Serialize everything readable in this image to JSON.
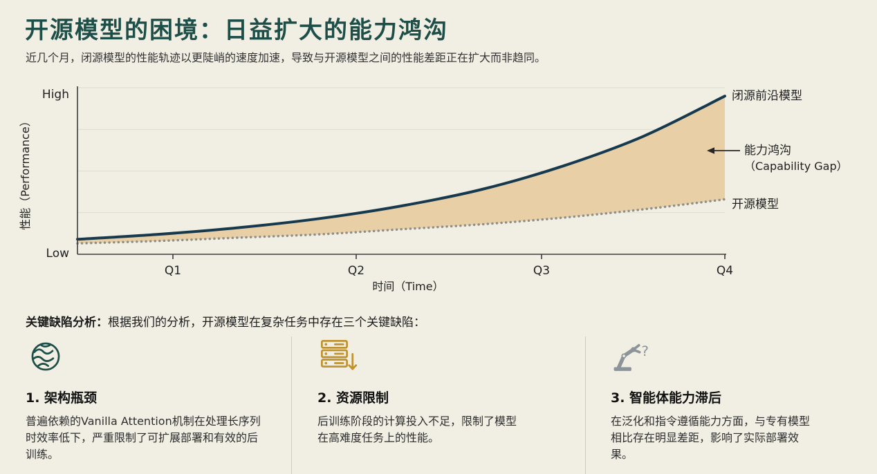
{
  "page": {
    "title": "开源模型的困境：日益扩大的能力鸿沟",
    "subtitle": "近几个月，闭源模型的性能轨迹以更陡峭的速度加速，导致与开源模型之间的性能差距正在扩大而非趋同。"
  },
  "chart_data": {
    "type": "line",
    "xlabel": "时间（Time）",
    "ylabel": "性能（Performance）",
    "y_axis_top_label": "High",
    "y_axis_bottom_label": "Low",
    "xticks": [
      "Q1",
      "Q2",
      "Q3",
      "Q4"
    ],
    "x_normalized": [
      0,
      0.125,
      0.25,
      0.375,
      0.5,
      0.625,
      0.75,
      0.875,
      1
    ],
    "ylim_normalized": [
      0,
      1
    ],
    "grid": "horizontal",
    "legend_position": "right-outside",
    "series": [
      {
        "name": "闭源前沿模型",
        "line_style": "solid",
        "color": "#17394d",
        "values": [
          0.09,
          0.12,
          0.16,
          0.215,
          0.29,
          0.39,
          0.53,
          0.71,
          0.95
        ]
      },
      {
        "name": "开源模型",
        "line_style": "dotted",
        "color": "#8f8f8a",
        "values": [
          0.065,
          0.08,
          0.1,
          0.12,
          0.15,
          0.18,
          0.22,
          0.27,
          0.33
        ]
      }
    ],
    "gap_annotation": {
      "line1": "能力鸿沟",
      "line2": "（Capability Gap）",
      "fill_color": "#e9cfa6"
    }
  },
  "analysis": {
    "heading_label": "关键缺陷分析：",
    "heading_text": "根据我们的分析，开源模型在复杂任务中存在三个关键缺陷：",
    "flaws": [
      {
        "icon": "brain-icon",
        "icon_color": "#1d4e48",
        "title": "1. 架构瓶颈",
        "description": "普遍依赖的Vanilla Attention机制在处理长序列时效率低下，严重限制了可扩展部署和有效的后训练。"
      },
      {
        "icon": "server-stack-icon",
        "icon_color": "#c0922e",
        "title": "2. 资源限制",
        "description": "后训练阶段的计算投入不足，限制了模型在高难度任务上的性能。"
      },
      {
        "icon": "robot-arm-icon",
        "icon_color": "#8d9499",
        "icon_glyph": "?",
        "title": "3. 智能体能力滞后",
        "description": "在泛化和指令遵循能力方面，与专有模型相比存在明显差距，影响了实际部署效果。"
      }
    ]
  },
  "colors": {
    "background": "#f1eee4",
    "title": "#1d4e48",
    "closed_line": "#17394d",
    "open_line": "#8f8f8a",
    "gap_fill": "#e9cfa6",
    "divider": "#cfccbf"
  }
}
